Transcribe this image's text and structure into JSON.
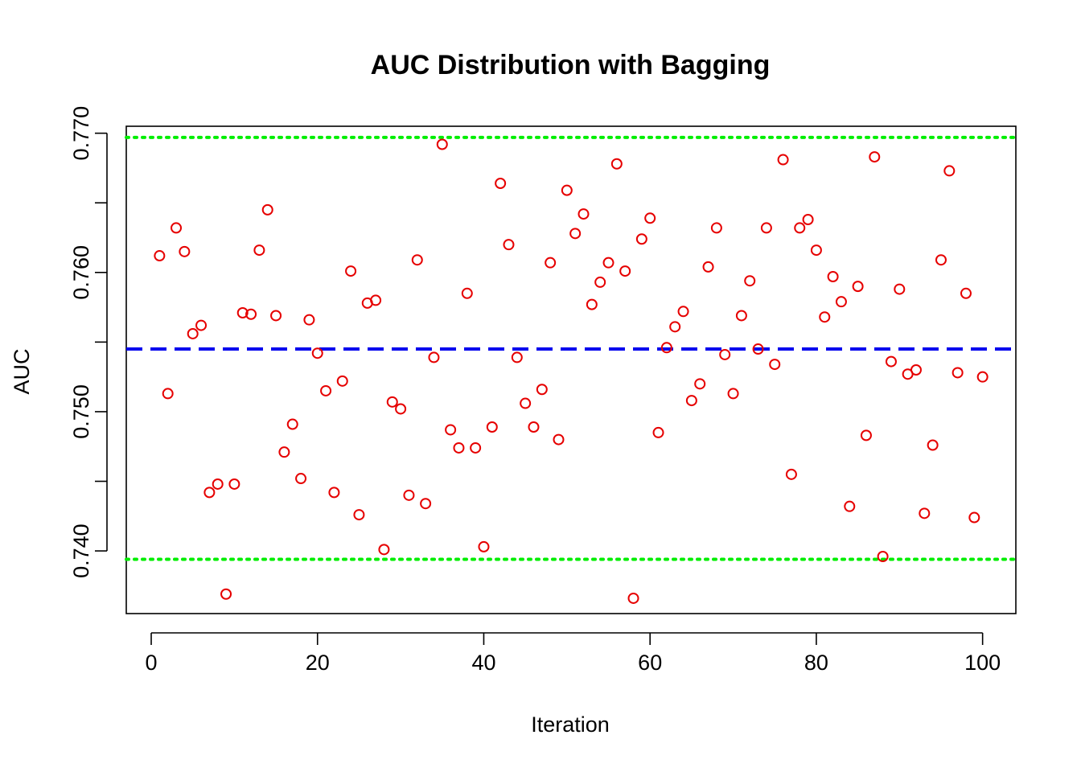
{
  "chart_data": {
    "type": "scatter",
    "title": "AUC Distribution with Bagging",
    "xlabel": "Iteration",
    "ylabel": "AUC",
    "xlim": [
      -3,
      104
    ],
    "ylim": [
      0.7355,
      0.7705
    ],
    "x_ticks": [
      0,
      20,
      40,
      60,
      80,
      100
    ],
    "x_tick_labels": [
      "0",
      "20",
      "40",
      "60",
      "80",
      "100"
    ],
    "y_ticks": [
      0.74,
      0.745,
      0.75,
      0.755,
      0.76,
      0.765,
      0.77
    ],
    "y_tick_labels": [
      "0.740",
      "",
      "0.750",
      "",
      "0.760",
      "",
      "0.770"
    ],
    "grid": false,
    "point_style": "open circle",
    "point_color": "#e60000",
    "x": [
      1,
      2,
      3,
      4,
      5,
      6,
      7,
      8,
      9,
      10,
      11,
      12,
      13,
      14,
      15,
      16,
      17,
      18,
      19,
      20,
      21,
      22,
      23,
      24,
      25,
      26,
      27,
      28,
      29,
      30,
      31,
      32,
      33,
      34,
      35,
      36,
      37,
      38,
      39,
      40,
      41,
      42,
      43,
      44,
      45,
      46,
      47,
      48,
      49,
      50,
      51,
      52,
      53,
      54,
      55,
      56,
      57,
      58,
      59,
      60,
      61,
      62,
      63,
      64,
      65,
      66,
      67,
      68,
      69,
      70,
      71,
      72,
      73,
      74,
      75,
      76,
      77,
      78,
      79,
      80,
      81,
      82,
      83,
      84,
      85,
      86,
      87,
      88,
      89,
      90,
      91,
      92,
      93,
      94,
      95,
      96,
      97,
      98,
      99,
      100
    ],
    "y": [
      0.7612,
      0.7513,
      0.7632,
      0.7615,
      0.7556,
      0.7562,
      0.7442,
      0.7448,
      0.7369,
      0.7448,
      0.7571,
      0.757,
      0.7616,
      0.7645,
      0.7569,
      0.7471,
      0.7491,
      0.7452,
      0.7566,
      0.7542,
      0.7515,
      0.7442,
      0.7522,
      0.7601,
      0.7426,
      0.7578,
      0.758,
      0.7401,
      0.7507,
      0.7502,
      0.744,
      0.7609,
      0.7434,
      0.7539,
      0.7692,
      0.7487,
      0.7474,
      0.7585,
      0.7474,
      0.7403,
      0.7489,
      0.7664,
      0.762,
      0.7539,
      0.7506,
      0.7489,
      0.7516,
      0.7607,
      0.748,
      0.7659,
      0.7628,
      0.7642,
      0.7577,
      0.7593,
      0.7607,
      0.7678,
      0.7601,
      0.7366,
      0.7624,
      0.7639,
      0.7485,
      0.7546,
      0.7561,
      0.7572,
      0.7508,
      0.752,
      0.7604,
      0.7632,
      0.7541,
      0.7513,
      0.7569,
      0.7594,
      0.7545,
      0.7632,
      0.7534,
      0.7681,
      0.7455,
      0.7632,
      0.7638,
      0.7616,
      0.7568,
      0.7597,
      0.7579,
      0.7432,
      0.759,
      0.7483,
      0.7683,
      0.7396,
      0.7536,
      0.7588,
      0.7527,
      0.753,
      0.7427,
      0.7476,
      0.7609,
      0.7673,
      0.7528,
      0.7585,
      0.7424,
      0.7525
    ],
    "reference_lines": [
      {
        "kind": "mean",
        "value": 0.7545,
        "color": "#0000ee",
        "style": "dashed"
      },
      {
        "kind": "upper",
        "value": 0.7697,
        "color": "#00ee00",
        "style": "dotted"
      },
      {
        "kind": "lower",
        "value": 0.7394,
        "color": "#00ee00",
        "style": "dotted"
      }
    ]
  }
}
